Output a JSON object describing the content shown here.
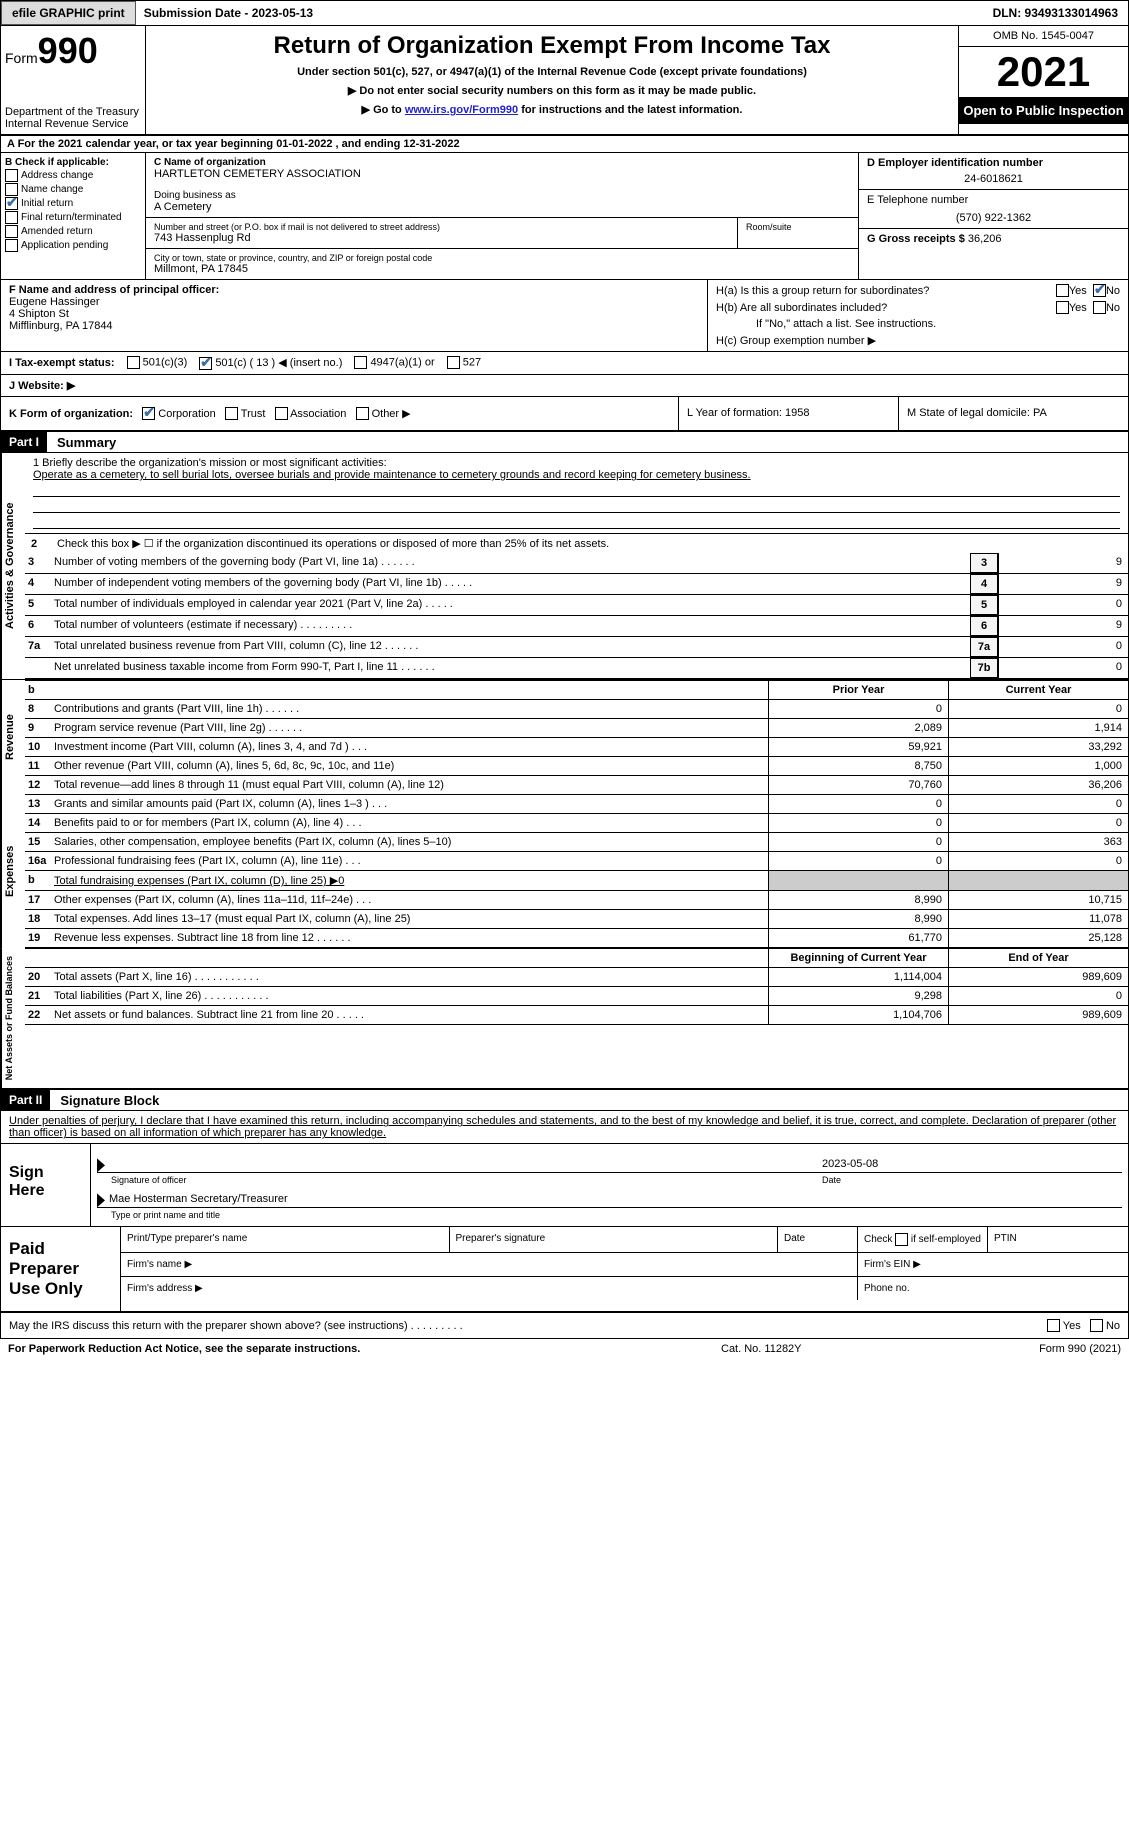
{
  "topbar": {
    "btn1": "efile GRAPHIC print",
    "subdate_label": "Submission Date - 2023-05-13",
    "dln": "DLN: 93493133014963"
  },
  "header": {
    "form_prefix": "Form",
    "form_no": "990",
    "dept": "Department of the Treasury",
    "irs": "Internal Revenue Service",
    "title": "Return of Organization Exempt From Income Tax",
    "sub1": "Under section 501(c), 527, or 4947(a)(1) of the Internal Revenue Code (except private foundations)",
    "sub2": "▶ Do not enter social security numbers on this form as it may be made public.",
    "sub3_pre": "▶ Go to ",
    "sub3_link": "www.irs.gov/Form990",
    "sub3_post": " for instructions and the latest information.",
    "omb": "OMB No. 1545-0047",
    "year": "2021",
    "open": "Open to Public Inspection"
  },
  "sectionA": "A For the 2021 calendar year, or tax year beginning 01-01-2022     , and ending 12-31-2022",
  "colB": {
    "header": "B Check if applicable:",
    "items": [
      "Address change",
      "Name change",
      "Initial return",
      "Final return/terminated",
      "Amended return",
      "Application pending"
    ],
    "checked_idx": 2
  },
  "boxC": {
    "lbl_name": "C Name of organization",
    "org": "HARTLETON CEMETERY ASSOCIATION",
    "lbl_dba": "Doing business as",
    "dba": "A Cemetery",
    "lbl_addr": "Number and street (or P.O. box if mail is not delivered to street address)",
    "room": "Room/suite",
    "addr": "743 Hassenplug Rd",
    "lbl_city": "City or town, state or province, country, and ZIP or foreign postal code",
    "city": "Millmont, PA   17845"
  },
  "colD": {
    "lbl_ein": "D Employer identification number",
    "ein": "24-6018621",
    "lbl_tel": "E Telephone number",
    "tel": "(570) 922-1362",
    "lbl_gross": "G Gross receipts $",
    "gross": "36,206"
  },
  "boxF": {
    "label": "F Name and address of principal officer:",
    "l1": "Eugene Hassinger",
    "l2": "4 Shipton St",
    "l3": "Mifflinburg, PA   17844"
  },
  "boxH": {
    "ha": "H(a)  Is this a group return for subordinates?",
    "hb": "H(b)  Are all subordinates included?",
    "hb_note": "If \"No,\" attach a list. See instructions.",
    "hc": "H(c)  Group exemption number ▶",
    "yes": "Yes",
    "no": "No"
  },
  "taxstatus": {
    "label": "I  Tax-exempt status:",
    "o1": "501(c)(3)",
    "o2": "501(c) ( 13 ) ◀ (insert no.)",
    "o3": "4947(a)(1) or",
    "o4": "527"
  },
  "website": "J  Website: ▶",
  "k": {
    "label": "K Form of organization:",
    "opts": [
      "Corporation",
      "Trust",
      "Association",
      "Other ▶"
    ],
    "l_year": "L Year of formation: 1958",
    "m_state": "M State of legal domicile: PA"
  },
  "part1": {
    "hdr": "Part I",
    "title": "Summary"
  },
  "mission": {
    "prompt": "1  Briefly describe the organization's mission or most significant activities:",
    "text": "Operate as a cemetery, to sell burial lots, oversee burials and provide maintenance to cemetery grounds and record keeping for cemetery business."
  },
  "gov_lines": {
    "l2": "Check this box ▶ ☐ if the organization discontinued its operations or disposed of more than 25% of its net assets.",
    "rows": [
      {
        "n": "3",
        "d": "Number of voting members of the governing body (Part VI, line 1a)     .     .     .     .     .     .",
        "box": "3",
        "v": "9"
      },
      {
        "n": "4",
        "d": "Number of independent voting members of the governing body (Part VI, line 1b)   .     .     .     .     .",
        "box": "4",
        "v": "9"
      },
      {
        "n": "5",
        "d": "Total number of individuals employed in calendar year 2021 (Part V, line 2a)   .     .     .     .     .",
        "box": "5",
        "v": "0"
      },
      {
        "n": "6",
        "d": "Total number of volunteers (estimate if necessary)     .     .     .     .     .     .     .     .     .",
        "box": "6",
        "v": "9"
      },
      {
        "n": "7a",
        "d": "Total unrelated business revenue from Part VIII, column (C), line 12     .     .     .     .     .     .",
        "box": "7a",
        "v": "0"
      },
      {
        "n": " ",
        "d": "Net unrelated business taxable income from Form 990-T, Part I, line 11   .     .     .     .     .     .",
        "box": "7b",
        "v": "0"
      }
    ]
  },
  "col_heads": {
    "b": "b",
    "prior": "Prior Year",
    "current": "Current Year"
  },
  "revenue": {
    "tab": "Revenue",
    "rows": [
      {
        "n": "8",
        "d": "Contributions and grants (Part VIII, line 1h)     .     .     .     .     .     .",
        "p": "0",
        "c": "0"
      },
      {
        "n": "9",
        "d": "Program service revenue (Part VIII, line 2g)    .     .     .     .     .     .",
        "p": "2,089",
        "c": "1,914"
      },
      {
        "n": "10",
        "d": "Investment income (Part VIII, column (A), lines 3, 4, and 7d )    .     .     .",
        "p": "59,921",
        "c": "33,292"
      },
      {
        "n": "11",
        "d": "Other revenue (Part VIII, column (A), lines 5, 6d, 8c, 9c, 10c, and 11e)",
        "p": "8,750",
        "c": "1,000"
      },
      {
        "n": "12",
        "d": "Total revenue—add lines 8 through 11 (must equal Part VIII, column (A), line 12)",
        "p": "70,760",
        "c": "36,206"
      }
    ]
  },
  "expenses": {
    "tab": "Expenses",
    "rows": [
      {
        "n": "13",
        "d": "Grants and similar amounts paid (Part IX, column (A), lines 1–3 )   .     .     .",
        "p": "0",
        "c": "0"
      },
      {
        "n": "14",
        "d": "Benefits paid to or for members (Part IX, column (A), line 4)   .     .     .",
        "p": "0",
        "c": "0"
      },
      {
        "n": "15",
        "d": "Salaries, other compensation, employee benefits (Part IX, column (A), lines 5–10)",
        "p": "0",
        "c": "363"
      },
      {
        "n": "16a",
        "d": "Professional fundraising fees (Part IX, column (A), line 11e)   .     .     .",
        "p": "0",
        "c": "0"
      }
    ],
    "b_line": {
      "n": "b",
      "d": "Total fundraising expenses (Part IX, column (D), line 25) ▶0"
    },
    "rows2": [
      {
        "n": "17",
        "d": "Other expenses (Part IX, column (A), lines 11a–11d, 11f–24e)   .     .     .",
        "p": "8,990",
        "c": "10,715"
      },
      {
        "n": "18",
        "d": "Total expenses. Add lines 13–17 (must equal Part IX, column (A), line 25)",
        "p": "8,990",
        "c": "11,078"
      },
      {
        "n": "19",
        "d": "Revenue less expenses. Subtract line 18 from line 12  .     .     .     .     .     .",
        "p": "61,770",
        "c": "25,128"
      }
    ]
  },
  "netassets": {
    "tab": "Net Assets or Fund Balances",
    "head1": "Beginning of Current Year",
    "head2": "End of Year",
    "rows": [
      {
        "n": "20",
        "d": "Total assets (Part X, line 16)   .     .     .     .     .     .     .     .     .     .     .",
        "p": "1,114,004",
        "c": "989,609"
      },
      {
        "n": "21",
        "d": "Total liabilities (Part X, line 26)  .     .     .     .     .     .     .     .     .     .     .",
        "p": "9,298",
        "c": "0"
      },
      {
        "n": "22",
        "d": "Net assets or fund balances. Subtract line 21 from line 20   .     .     .     .     .",
        "p": "1,104,706",
        "c": "989,609"
      }
    ]
  },
  "part2": {
    "hdr": "Part II",
    "title": "Signature Block"
  },
  "penalties": "Under penalties of perjury, I declare that I have examined this return, including accompanying schedules and statements, and to the best of my knowledge and belief, it is true, correct, and complete. Declaration of preparer (other than officer) is based on all information of which preparer has any knowledge.",
  "sign": {
    "label": "Sign Here",
    "date": "2023-05-08",
    "cap_sig": "Signature of officer",
    "cap_date": "Date",
    "name": "Mae Hosterman  Secretary/Treasurer",
    "cap_name": "Type or print name and title"
  },
  "paid": {
    "label": "Paid Preparer Use Only",
    "h1": "Print/Type preparer's name",
    "h2": "Preparer's signature",
    "h3": "Date",
    "h4_pre": "Check ",
    "h4_post": " if self-employed",
    "h5": "PTIN",
    "firm_name": "Firm's name      ▶",
    "firm_ein": "Firm's EIN ▶",
    "firm_addr": "Firm's address ▶",
    "phone": "Phone no."
  },
  "final": {
    "q": "May the IRS discuss this return with the preparer shown above? (see instructions)   .     .     .     .     .     .     .     .     .",
    "yes": "Yes",
    "no": "No"
  },
  "footer": {
    "l": "For Paperwork Reduction Act Notice, see the separate instructions.",
    "m": "Cat. No. 11282Y",
    "r": "Form 990 (2021)"
  },
  "vtabs": {
    "gov": "Activities & Governance"
  }
}
